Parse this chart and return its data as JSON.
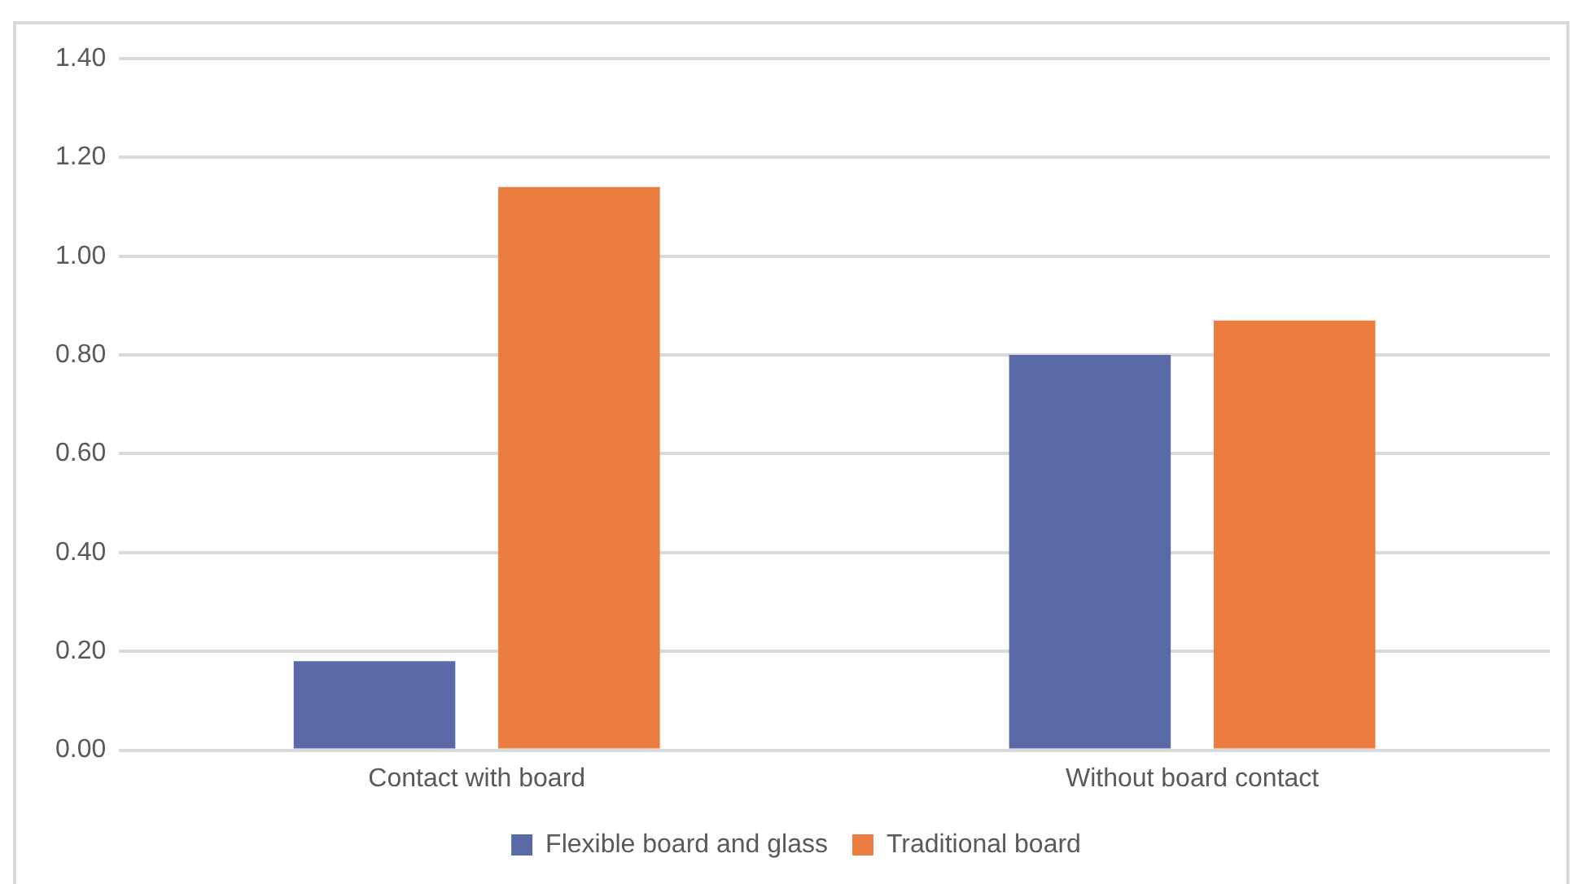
{
  "chart_data": {
    "type": "bar",
    "categories": [
      "Contact with board",
      "Without board contact"
    ],
    "series": [
      {
        "name": "Flexible board and glass",
        "color": "#5a6aa7",
        "values": [
          0.18,
          0.8
        ]
      },
      {
        "name": "Traditional board",
        "color": "#ec7d40",
        "values": [
          1.14,
          0.87
        ]
      }
    ],
    "ylim": [
      0,
      1.4
    ],
    "yticks": [
      {
        "value": 0,
        "label": "0.00"
      },
      {
        "value": 0.2,
        "label": "0.20"
      },
      {
        "value": 0.4,
        "label": "0.40"
      },
      {
        "value": 0.6,
        "label": "0.60"
      },
      {
        "value": 0.8,
        "label": "0.80"
      },
      {
        "value": 1,
        "label": "1.00"
      },
      {
        "value": 1.2,
        "label": "1.20"
      },
      {
        "value": 1.4,
        "label": "1.40"
      }
    ],
    "grid": "y",
    "legend": "bottom"
  }
}
